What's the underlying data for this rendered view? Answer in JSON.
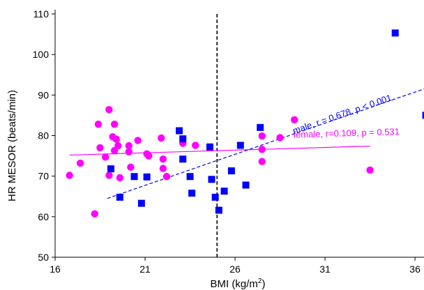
{
  "chart_data": {
    "type": "scatter",
    "title": "",
    "xlabel": "BMI (kg/m",
    "xlabel_sup": "2",
    "xlabel_close": ")",
    "ylabel": "HR MESOR (beats/min)",
    "xlim": [
      16,
      36.5
    ],
    "ylim": [
      50,
      110
    ],
    "xticks": [
      16,
      21,
      26,
      31,
      36
    ],
    "yticks": [
      50,
      60,
      70,
      80,
      90,
      100,
      110
    ],
    "grid": false,
    "legend": "none",
    "vline": {
      "x": 25,
      "style": "dashed",
      "color": "#000000"
    },
    "series": [
      {
        "marker": "circle",
        "color": "#ff00ff",
        "points": [
          [
            16.8,
            70.2
          ],
          [
            17.4,
            73.2
          ],
          [
            18.2,
            60.7
          ],
          [
            18.4,
            82.8
          ],
          [
            18.5,
            77.0
          ],
          [
            18.8,
            74.7
          ],
          [
            19.0,
            86.4
          ],
          [
            19.0,
            70.2
          ],
          [
            19.2,
            79.7
          ],
          [
            19.3,
            76.3
          ],
          [
            19.3,
            82.8
          ],
          [
            19.4,
            79.1
          ],
          [
            19.5,
            77.5
          ],
          [
            19.6,
            69.6
          ],
          [
            20.1,
            76.0
          ],
          [
            20.1,
            77.5
          ],
          [
            20.2,
            72.2
          ],
          [
            20.6,
            78.8
          ],
          [
            21.1,
            75.5
          ],
          [
            21.2,
            75.0
          ],
          [
            21.9,
            79.4
          ],
          [
            22.0,
            74.2
          ],
          [
            22.0,
            71.9
          ],
          [
            22.2,
            69.9
          ],
          [
            23.1,
            78.1
          ],
          [
            23.8,
            77.6
          ],
          [
            27.5,
            79.9
          ],
          [
            27.5,
            76.6
          ],
          [
            27.5,
            73.6
          ],
          [
            28.5,
            79.5
          ],
          [
            29.3,
            83.9
          ],
          [
            33.5,
            71.5
          ]
        ],
        "trend": {
          "x": [
            16.8,
            33.5
          ],
          "y": [
            75.2,
            77.4
          ],
          "style": "solid",
          "label": "female, r=0.109, p = 0.531"
        }
      },
      {
        "marker": "square",
        "color": "#0000ff",
        "points": [
          [
            19.1,
            71.8
          ],
          [
            19.6,
            64.8
          ],
          [
            20.4,
            69.9
          ],
          [
            20.8,
            63.3
          ],
          [
            21.1,
            69.8
          ],
          [
            22.9,
            81.2
          ],
          [
            23.1,
            79.2
          ],
          [
            23.1,
            74.2
          ],
          [
            23.5,
            69.9
          ],
          [
            23.6,
            65.8
          ],
          [
            24.6,
            77.2
          ],
          [
            24.7,
            69.2
          ],
          [
            24.9,
            64.8
          ],
          [
            25.1,
            61.6
          ],
          [
            25.4,
            66.3
          ],
          [
            25.8,
            71.3
          ],
          [
            26.3,
            77.6
          ],
          [
            26.6,
            67.8
          ],
          [
            27.4,
            82.0
          ],
          [
            34.9,
            105.3
          ],
          [
            36.6,
            85.0
          ]
        ],
        "trend": {
          "x": [
            18.9,
            36.5
          ],
          "y": [
            64.5,
            91.5
          ],
          "style": "dashed",
          "label": "male, r = 0.678, p < 0.001"
        }
      }
    ]
  }
}
